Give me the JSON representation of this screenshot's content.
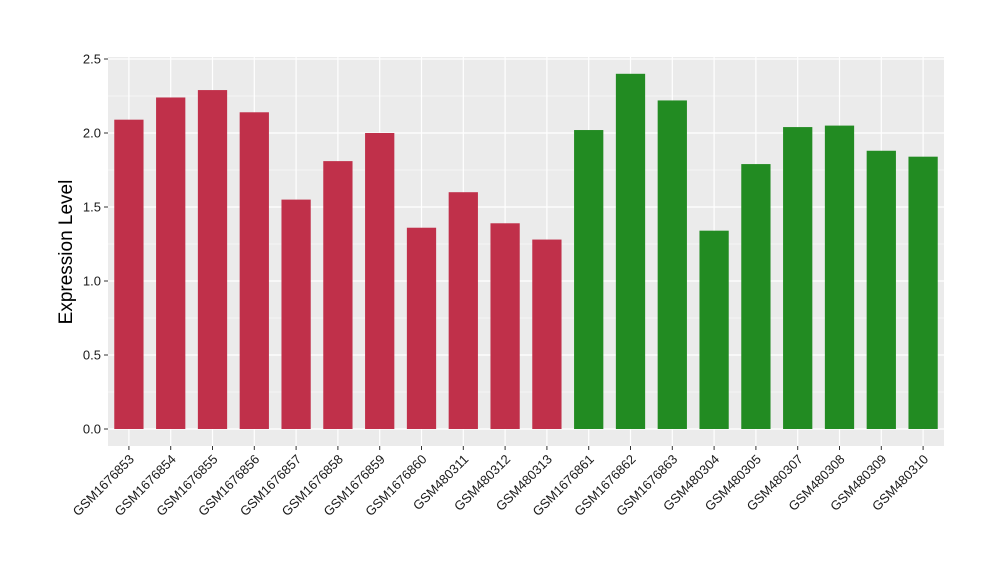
{
  "chart_data": {
    "type": "bar",
    "ylabel": "Expression Level",
    "xlabel": "",
    "ylim": [
      0,
      2.5
    ],
    "yticks": [
      "0.0",
      "0.5",
      "1.0",
      "1.5",
      "2.0",
      "2.5"
    ],
    "grid": true,
    "categories": [
      "GSM1676853",
      "GSM1676854",
      "GSM1676855",
      "GSM1676856",
      "GSM1676857",
      "GSM1676858",
      "GSM1676859",
      "GSM1676860",
      "GSM480311",
      "GSM480312",
      "GSM480313",
      "GSM1676861",
      "GSM1676862",
      "GSM1676863",
      "GSM480304",
      "GSM480305",
      "GSM480307",
      "GSM480308",
      "GSM480309",
      "GSM480310"
    ],
    "values": [
      2.09,
      2.24,
      2.29,
      2.14,
      1.55,
      1.81,
      2.0,
      1.36,
      1.6,
      1.39,
      1.28,
      2.02,
      2.4,
      2.22,
      1.34,
      1.79,
      2.04,
      2.05,
      1.88,
      1.84
    ],
    "bar_colors": [
      "#c0304a",
      "#c0304a",
      "#c0304a",
      "#c0304a",
      "#c0304a",
      "#c0304a",
      "#c0304a",
      "#c0304a",
      "#c0304a",
      "#c0304a",
      "#c0304a",
      "#228b22",
      "#228b22",
      "#228b22",
      "#228b22",
      "#228b22",
      "#228b22",
      "#228b22",
      "#228b22",
      "#228b22"
    ],
    "panel_background": "#ebebeb",
    "grid_color": "#ffffff"
  }
}
